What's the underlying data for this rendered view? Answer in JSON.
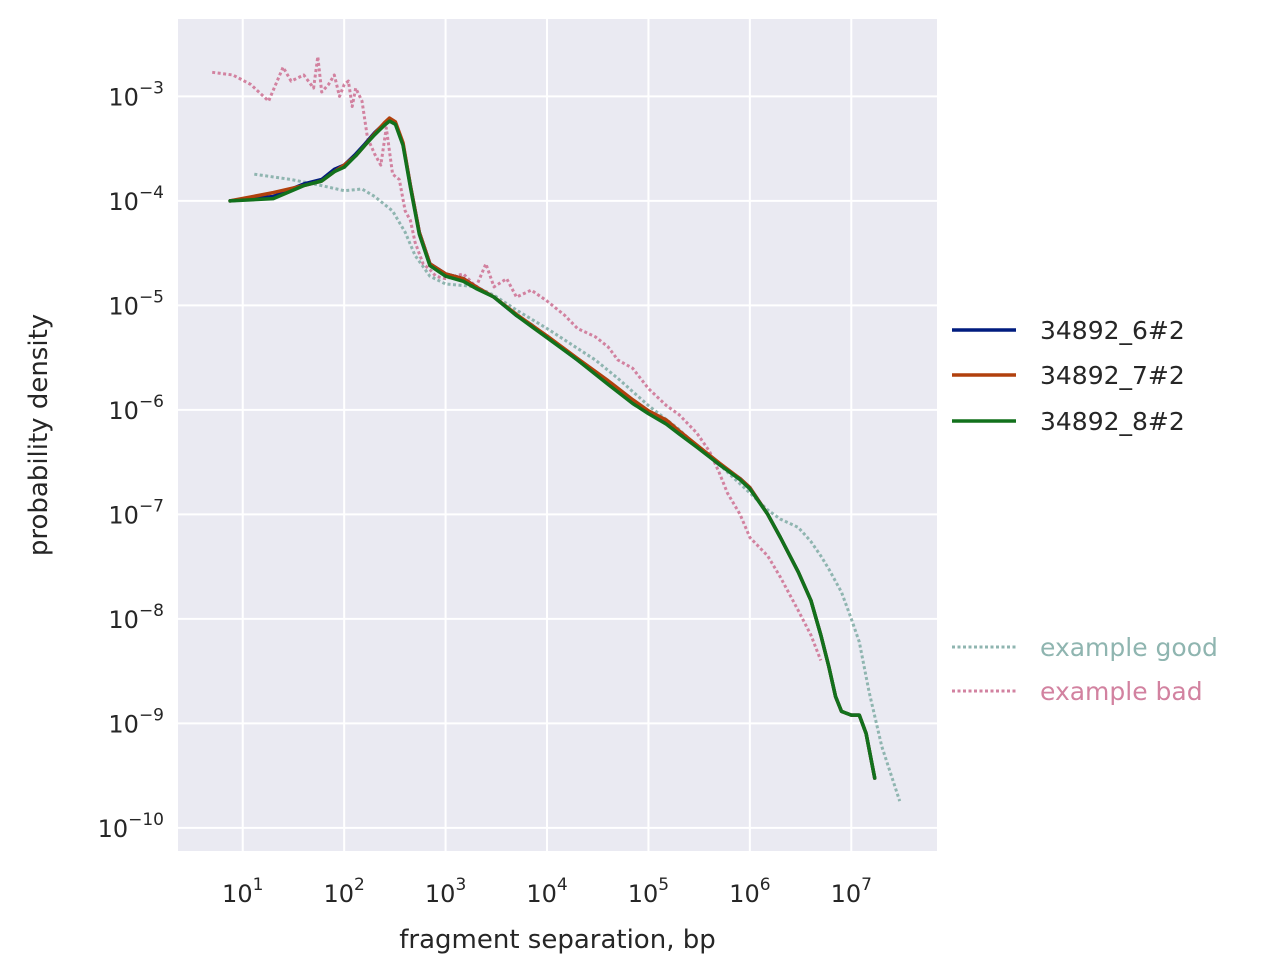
{
  "chart_data": {
    "type": "line",
    "title": "",
    "xlabel": "fragment separation, bp",
    "ylabel": "probability density",
    "x_scale": "log",
    "y_scale": "log",
    "xlim": [
      2.3,
      70000000
    ],
    "ylim": [
      6e-11,
      0.0055
    ],
    "grid": true,
    "x_ticks": [
      {
        "value": 10,
        "base": "10",
        "exp": "1"
      },
      {
        "value": 100,
        "base": "10",
        "exp": "2"
      },
      {
        "value": 1000,
        "base": "10",
        "exp": "3"
      },
      {
        "value": 10000,
        "base": "10",
        "exp": "4"
      },
      {
        "value": 100000,
        "base": "10",
        "exp": "5"
      },
      {
        "value": 1000000,
        "base": "10",
        "exp": "6"
      },
      {
        "value": 10000000,
        "base": "10",
        "exp": "7"
      }
    ],
    "y_ticks": [
      {
        "value": 0.001,
        "base": "10",
        "exp": "−3"
      },
      {
        "value": 0.0001,
        "base": "10",
        "exp": "−4"
      },
      {
        "value": 1e-05,
        "base": "10",
        "exp": "−5"
      },
      {
        "value": 1e-06,
        "base": "10",
        "exp": "−6"
      },
      {
        "value": 1e-07,
        "base": "10",
        "exp": "−7"
      },
      {
        "value": 1e-08,
        "base": "10",
        "exp": "−8"
      },
      {
        "value": 1e-09,
        "base": "10",
        "exp": "−9"
      },
      {
        "value": 1e-10,
        "base": "10",
        "exp": "−10"
      }
    ],
    "legend_placement": "right",
    "series": [
      {
        "name": "34892_6#2",
        "color": "#001c7f",
        "style": "solid",
        "x": [
          7.5,
          20,
          40,
          60,
          80,
          100,
          130,
          160,
          200,
          250,
          280,
          320,
          380,
          450,
          550,
          700,
          1000,
          1500,
          2000,
          3000,
          5000,
          7000,
          10000,
          20000,
          40000,
          70000,
          100000,
          150000,
          200000,
          300000,
          500000,
          800000,
          1000000,
          1500000,
          2000000,
          3000000,
          4000000,
          5000000,
          6000000,
          7000000,
          8000000,
          10000000,
          12000000,
          14000000,
          17000000
        ],
        "y": [
          0.0001,
          0.00011,
          0.000145,
          0.00016,
          0.0002,
          0.00022,
          0.00028,
          0.00035,
          0.00045,
          0.00055,
          0.0006,
          0.00055,
          0.00035,
          0.00014,
          5e-05,
          2.5e-05,
          2e-05,
          1.8e-05,
          1.5e-05,
          1.2e-05,
          8e-06,
          6.5e-06,
          5e-06,
          3e-06,
          1.8e-06,
          1.2e-06,
          9.5e-07,
          7.5e-07,
          6e-07,
          4.5e-07,
          3e-07,
          2.2e-07,
          1.8e-07,
          1e-07,
          6e-08,
          2.8e-08,
          1.5e-08,
          7e-09,
          3.5e-09,
          1.8e-09,
          1.3e-09,
          1.2e-09,
          1.2e-09,
          8e-10,
          3e-10
        ]
      },
      {
        "name": "34892_7#2",
        "color": "#b1400d",
        "style": "solid",
        "x": [
          7.5,
          20,
          40,
          60,
          80,
          100,
          130,
          160,
          200,
          250,
          280,
          320,
          380,
          450,
          550,
          700,
          1000,
          1500,
          2000,
          3000,
          5000,
          7000,
          10000,
          20000,
          40000,
          70000,
          100000,
          150000,
          200000,
          300000,
          500000,
          800000,
          1000000,
          1500000,
          2000000,
          3000000,
          4000000,
          5000000,
          6000000,
          7000000,
          8000000,
          10000000,
          12000000,
          14000000,
          17000000
        ],
        "y": [
          0.0001,
          0.00012,
          0.00014,
          0.000155,
          0.00019,
          0.00022,
          0.00027,
          0.00034,
          0.00044,
          0.00056,
          0.00062,
          0.00057,
          0.00036,
          0.00014,
          5e-05,
          2.5e-05,
          2e-05,
          1.8e-05,
          1.5e-05,
          1.2e-05,
          8.2e-06,
          6.5e-06,
          5.1e-06,
          3.1e-06,
          1.9e-06,
          1.25e-06,
          9.8e-07,
          8e-07,
          6.3e-07,
          4.6e-07,
          3.1e-07,
          2.2e-07,
          1.8e-07,
          1e-07,
          6e-08,
          2.8e-08,
          1.5e-08,
          7e-09,
          3.5e-09,
          1.8e-09,
          1.3e-09,
          1.2e-09,
          1.2e-09,
          8e-10,
          3e-10
        ]
      },
      {
        "name": "34892_8#2",
        "color": "#12711c",
        "style": "solid",
        "x": [
          7.5,
          20,
          40,
          60,
          80,
          100,
          130,
          160,
          200,
          250,
          280,
          320,
          380,
          450,
          550,
          700,
          1000,
          1500,
          2000,
          3000,
          5000,
          7000,
          10000,
          20000,
          40000,
          70000,
          100000,
          150000,
          200000,
          300000,
          500000,
          800000,
          1000000,
          1500000,
          2000000,
          3000000,
          4000000,
          5000000,
          6000000,
          7000000,
          8000000,
          10000000,
          12000000,
          14000000,
          17000000
        ],
        "y": [
          0.0001,
          0.000105,
          0.00014,
          0.000155,
          0.00019,
          0.00021,
          0.00027,
          0.00034,
          0.00043,
          0.00053,
          0.00058,
          0.00054,
          0.00034,
          0.000135,
          4.8e-05,
          2.4e-05,
          1.9e-05,
          1.7e-05,
          1.45e-05,
          1.2e-05,
          8e-06,
          6.3e-06,
          4.9e-06,
          3e-06,
          1.75e-06,
          1.15e-06,
          9.2e-07,
          7.3e-07,
          5.9e-07,
          4.4e-07,
          3e-07,
          2.15e-07,
          1.75e-07,
          1e-07,
          6e-08,
          2.8e-08,
          1.5e-08,
          7e-09,
          3.5e-09,
          1.8e-09,
          1.3e-09,
          1.2e-09,
          1.2e-09,
          8e-10,
          3e-10
        ]
      },
      {
        "name": "example good",
        "color": "#8fb5b0",
        "style": "dotted",
        "x": [
          13,
          30,
          60,
          100,
          150,
          200,
          300,
          400,
          500,
          700,
          1000,
          1500,
          2000,
          3000,
          5000,
          10000,
          30000,
          50000,
          100000,
          200000,
          300000,
          500000,
          1000000,
          1500000,
          2000000,
          3000000,
          4000000,
          5000000,
          6000000,
          8000000,
          10000000,
          12000000,
          15000000,
          20000000,
          30000000
        ],
        "y": [
          0.00018,
          0.00016,
          0.00014,
          0.000125,
          0.00013,
          0.00011,
          8e-05,
          5e-05,
          3e-05,
          1.9e-05,
          1.6e-05,
          1.55e-05,
          1.5e-05,
          1.25e-05,
          9e-06,
          6e-06,
          3e-06,
          2e-06,
          1.1e-06,
          6.5e-07,
          4.5e-07,
          3e-07,
          1.6e-07,
          1.1e-07,
          9e-08,
          7.5e-08,
          5.5e-08,
          4e-08,
          3e-08,
          1.8e-08,
          1e-08,
          6e-09,
          2e-09,
          6e-10,
          1.8e-10
        ]
      },
      {
        "name": "example bad",
        "color": "#d282a0",
        "style": "dotted",
        "x": [
          5,
          8,
          12,
          18,
          25,
          30,
          40,
          50,
          55,
          60,
          70,
          80,
          90,
          100,
          110,
          120,
          130,
          150,
          170,
          200,
          230,
          260,
          300,
          350,
          400,
          450,
          500,
          600,
          700,
          800,
          1000,
          1500,
          2000,
          2500,
          3000,
          4000,
          5000,
          7000,
          10000,
          15000,
          20000,
          30000,
          40000,
          50000,
          70000,
          100000,
          150000,
          200000,
          300000,
          400000,
          500000,
          600000,
          800000,
          1000000,
          1500000,
          2000000,
          3000000,
          4000000,
          5000000
        ],
        "y": [
          0.0017,
          0.0016,
          0.0013,
          0.0009,
          0.0019,
          0.0014,
          0.0016,
          0.0012,
          0.0024,
          0.0011,
          0.0013,
          0.0016,
          0.001,
          0.0013,
          0.0014,
          0.0008,
          0.0012,
          0.0009,
          0.0004,
          0.00028,
          0.00022,
          0.0005,
          0.00018,
          0.00016,
          8e-05,
          6.5e-05,
          4e-05,
          2.5e-05,
          2.2e-05,
          1.9e-05,
          1.8e-05,
          2e-05,
          1.5e-05,
          2.5e-05,
          1.5e-05,
          1.8e-05,
          1.2e-05,
          1.4e-05,
          1.1e-05,
          8e-06,
          6e-06,
          5e-06,
          4e-06,
          3e-06,
          2.5e-06,
          1.6e-06,
          1.1e-06,
          9e-07,
          6e-07,
          4e-07,
          2.5e-07,
          1.6e-07,
          1e-07,
          6e-08,
          4e-08,
          2.5e-08,
          1.2e-08,
          7e-09,
          4e-09
        ]
      }
    ]
  },
  "legend": {
    "solid_items": [
      {
        "label": "34892_6#2",
        "color": "#001c7f"
      },
      {
        "label": "34892_7#2",
        "color": "#b1400d"
      },
      {
        "label": "34892_8#2",
        "color": "#12711c"
      }
    ],
    "dotted_items": [
      {
        "label": "example good",
        "color": "#8fb5b0"
      },
      {
        "label": "example bad",
        "color": "#d282a0"
      }
    ]
  },
  "colors": {
    "plot_background": "#eaeaf2",
    "grid": "#ffffff",
    "text": "#262626"
  }
}
